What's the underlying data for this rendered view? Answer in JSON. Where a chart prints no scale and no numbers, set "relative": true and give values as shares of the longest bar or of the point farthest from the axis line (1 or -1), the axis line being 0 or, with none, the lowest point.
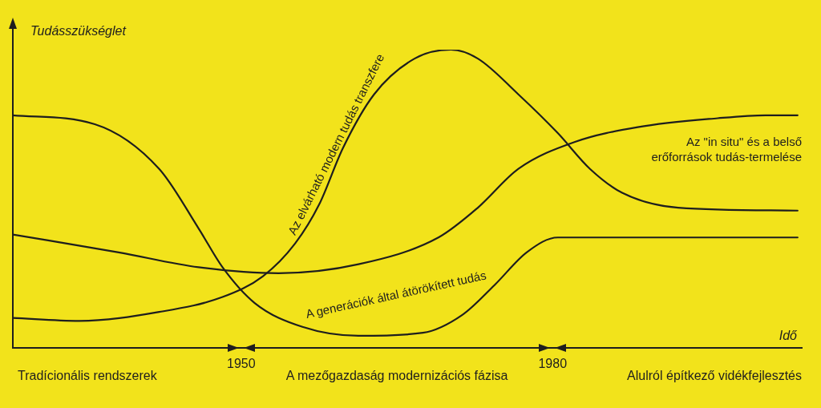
{
  "chart_data": {
    "type": "line",
    "relative": true,
    "xlabel": "Idő",
    "ylabel": "Tudásszükséglet",
    "xlim": [
      1928,
      2004
    ],
    "xticks": [
      1950,
      1980
    ],
    "legend": false,
    "grid": false,
    "marker": "none",
    "line_style": "solid",
    "annotations": [
      "Tradícionális rendszerek",
      "A mezőgazdaság modernizációs fázisa",
      "Alulról építkező vidékfejlesztés"
    ],
    "series": [
      {
        "name": "A generációk által átörökített tudás",
        "color": "#1e1e1e",
        "x": [
          1928,
          1935.9,
          1942.1,
          1945.9,
          1948.2,
          1951.3,
          1955.9,
          1961.3,
          1967.5,
          1971.3,
          1974.4,
          1977.5,
          1980.5,
          1986.7,
          2003.6
        ],
        "values": [
          0.78,
          0.75,
          0.6,
          0.4,
          0.27,
          0.15,
          0.07,
          0.04,
          0.05,
          0.11,
          0.21,
          0.32,
          0.37,
          0.37,
          0.37
        ]
      },
      {
        "name": "Az elvárható modern tudás transzfere",
        "color": "#1e1e1e",
        "x": [
          1928,
          1934.4,
          1942.1,
          1948.2,
          1952.1,
          1955.2,
          1957.5,
          1959.8,
          1962.8,
          1966.7,
          1970.2,
          1972.8,
          1976.7,
          1980.5,
          1983.6,
          1986.7,
          1992.1,
          2003.6
        ],
        "values": [
          0.1,
          0.09,
          0.12,
          0.17,
          0.24,
          0.35,
          0.48,
          0.67,
          0.85,
          0.97,
          1,
          0.97,
          0.85,
          0.72,
          0.6,
          0.52,
          0.47,
          0.46
        ]
      },
      {
        "name": "Az \"in situ\" és a belső erőforrások tudás-termelése",
        "color": "#1e1e1e",
        "x": [
          1928,
          1938.2,
          1945.9,
          1953.6,
          1961.3,
          1969,
          1972.8,
          1976.7,
          1982.1,
          1988.2,
          1995.9,
          2000.5,
          2003.6
        ],
        "values": [
          0.38,
          0.32,
          0.27,
          0.25,
          0.28,
          0.37,
          0.47,
          0.6,
          0.69,
          0.74,
          0.77,
          0.78,
          0.78
        ]
      }
    ]
  }
}
